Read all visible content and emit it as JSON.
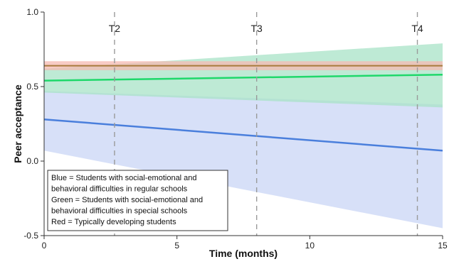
{
  "chart_data": {
    "type": "line",
    "xlabel": "Time (months)",
    "ylabel": "Peer acceptance",
    "xlim": [
      0,
      15
    ],
    "ylim": [
      -0.5,
      1.0
    ],
    "x_ticks": [
      0,
      5,
      10,
      15
    ],
    "y_ticks": [
      -0.5,
      0.0,
      0.5,
      1.0
    ],
    "x_tick_labels": [
      "0",
      "5",
      "10",
      "15"
    ],
    "y_tick_labels": [
      "-0.5",
      "0.0",
      "0.5",
      "1.0"
    ],
    "grid": false,
    "time_points": [
      {
        "label": "T2",
        "x": 2.65
      },
      {
        "label": "T3",
        "x": 8.0
      },
      {
        "label": "T4",
        "x": 14.05
      }
    ],
    "series": [
      {
        "color_name": "Blue",
        "color": "#4a7fdc",
        "band_color": "#c9d6f5",
        "x": [
          0,
          15
        ],
        "y": [
          0.28,
          0.07
        ],
        "ci_lower": [
          0.07,
          -0.45
        ],
        "ci_upper": [
          0.47,
          0.38
        ]
      },
      {
        "color_name": "Green",
        "color": "#1ed86a",
        "band_color": "#a8e3c7",
        "x": [
          0,
          15
        ],
        "y": [
          0.54,
          0.58
        ],
        "ci_lower": [
          0.46,
          0.36
        ],
        "ci_upper": [
          0.62,
          0.79
        ]
      },
      {
        "color_name": "Red",
        "color": "#e05a4a",
        "band_color": "#f6b9b1",
        "x": [
          0,
          15
        ],
        "y": [
          0.64,
          0.64
        ],
        "ci_lower": [
          0.61,
          0.61
        ],
        "ci_upper": [
          0.67,
          0.67
        ]
      }
    ],
    "overlap_line_color": "#a87a3c",
    "legend_placement": "bottom-left",
    "legend": [
      "Blue = Students with social-emotional and",
      "behavioral difficulties in regular schools",
      "Green = Students with social-emotional and",
      "behavioral difficulties in special schools",
      "Red = Typically developing students"
    ]
  }
}
